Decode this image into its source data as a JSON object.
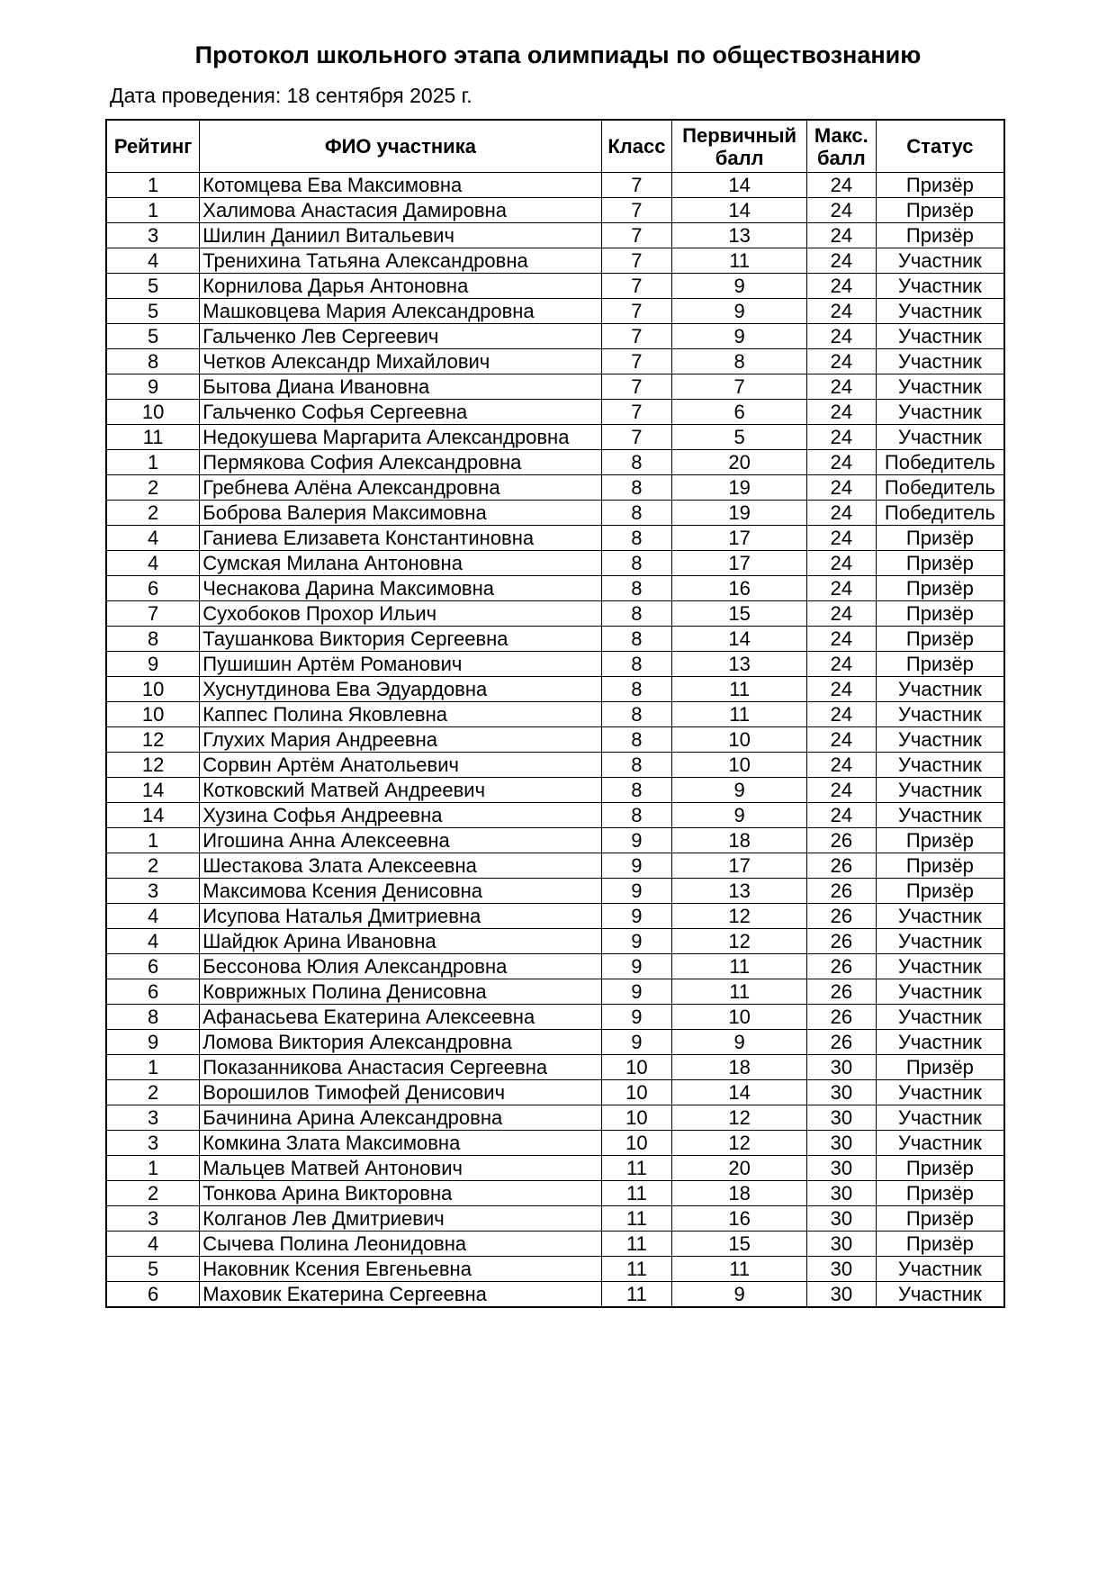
{
  "title": "Протокол школьного этапа олимпиады по обществознанию",
  "date_line": "Дата проведения: 18 сентября 2025 г.",
  "columns": [
    "Рейтинг",
    "ФИО участника",
    "Класс",
    "Первичный балл",
    "Макс. балл",
    "Статус"
  ],
  "rows": [
    [
      "1",
      "Котомцева Ева Максимовна",
      "7",
      "14",
      "24",
      "Призёр"
    ],
    [
      "1",
      "Халимова Анастасия Дамировна",
      "7",
      "14",
      "24",
      "Призёр"
    ],
    [
      "3",
      "Шилин Даниил Витальевич",
      "7",
      "13",
      "24",
      "Призёр"
    ],
    [
      "4",
      "Тренихина Татьяна Александровна",
      "7",
      "11",
      "24",
      "Участник"
    ],
    [
      "5",
      "Корнилова Дарья Антоновна",
      "7",
      "9",
      "24",
      "Участник"
    ],
    [
      "5",
      "Машковцева Мария Александровна",
      "7",
      "9",
      "24",
      "Участник"
    ],
    [
      "5",
      "Гальченко Лев Сергеевич",
      "7",
      "9",
      "24",
      "Участник"
    ],
    [
      "8",
      "Четков Александр Михайлович",
      "7",
      "8",
      "24",
      "Участник"
    ],
    [
      "9",
      "Бытова Диана Ивановна",
      "7",
      "7",
      "24",
      "Участник"
    ],
    [
      "10",
      "Гальченко Софья Сергеевна",
      "7",
      "6",
      "24",
      "Участник"
    ],
    [
      "11",
      "Недокушева Маргарита Александровна",
      "7",
      "5",
      "24",
      "Участник"
    ],
    [
      "1",
      "Пермякова София Александровна",
      "8",
      "20",
      "24",
      "Победитель"
    ],
    [
      "2",
      "Гребнева Алёна Александровна",
      "8",
      "19",
      "24",
      "Победитель"
    ],
    [
      "2",
      "Боброва Валерия Максимовна",
      "8",
      "19",
      "24",
      "Победитель"
    ],
    [
      "4",
      "Ганиева Елизавета Константиновна",
      "8",
      "17",
      "24",
      "Призёр"
    ],
    [
      "4",
      "Сумская Милана Антоновна",
      "8",
      "17",
      "24",
      "Призёр"
    ],
    [
      "6",
      "Чеснакова Дарина Максимовна",
      "8",
      "16",
      "24",
      "Призёр"
    ],
    [
      "7",
      "Сухобоков Прохор Ильич",
      "8",
      "15",
      "24",
      "Призёр"
    ],
    [
      "8",
      "Таушанкова Виктория Сергеевна",
      "8",
      "14",
      "24",
      "Призёр"
    ],
    [
      "9",
      "Пушишин Артём Романович",
      "8",
      "13",
      "24",
      "Призёр"
    ],
    [
      "10",
      "Хуснутдинова Ева Эдуардовна",
      "8",
      "11",
      "24",
      "Участник"
    ],
    [
      "10",
      "Каппес Полина Яковлевна",
      "8",
      "11",
      "24",
      "Участник"
    ],
    [
      "12",
      "Глухих Мария Андреевна",
      "8",
      "10",
      "24",
      "Участник"
    ],
    [
      "12",
      "Сорвин Артём Анатольевич",
      "8",
      "10",
      "24",
      "Участник"
    ],
    [
      "14",
      "Котковский Матвей Андреевич",
      "8",
      "9",
      "24",
      "Участник"
    ],
    [
      "14",
      "Хузина Софья Андреевна",
      "8",
      "9",
      "24",
      "Участник"
    ],
    [
      "1",
      "Игошина Анна Алексеевна",
      "9",
      "18",
      "26",
      "Призёр"
    ],
    [
      "2",
      "Шестакова Злата Алексеевна",
      "9",
      "17",
      "26",
      "Призёр"
    ],
    [
      "3",
      "Максимова Ксения Денисовна",
      "9",
      "13",
      "26",
      "Призёр"
    ],
    [
      "4",
      "Исупова Наталья Дмитриевна",
      "9",
      "12",
      "26",
      "Участник"
    ],
    [
      "4",
      "Шайдюк Арина Ивановна",
      "9",
      "12",
      "26",
      "Участник"
    ],
    [
      "6",
      "Бессонова Юлия Александровна",
      "9",
      "11",
      "26",
      "Участник"
    ],
    [
      "6",
      "Коврижных Полина Денисовна",
      "9",
      "11",
      "26",
      "Участник"
    ],
    [
      "8",
      "Афанасьева Екатерина Алексеевна",
      "9",
      "10",
      "26",
      "Участник"
    ],
    [
      "9",
      "Ломова Виктория Александровна",
      "9",
      "9",
      "26",
      "Участник"
    ],
    [
      "1",
      "Показанникова Анастасия Сергеевна",
      "10",
      "18",
      "30",
      "Призёр"
    ],
    [
      "2",
      "Ворошилов Тимофей Денисович",
      "10",
      "14",
      "30",
      "Участник"
    ],
    [
      "3",
      "Бачинина Арина Александровна",
      "10",
      "12",
      "30",
      "Участник"
    ],
    [
      "3",
      "Комкина Злата Максимовна",
      "10",
      "12",
      "30",
      "Участник"
    ],
    [
      "1",
      "Мальцев Матвей Антонович",
      "11",
      "20",
      "30",
      "Призёр"
    ],
    [
      "2",
      "Тонкова Арина Викторовна",
      "11",
      "18",
      "30",
      "Призёр"
    ],
    [
      "3",
      "Колганов Лев Дмитриевич",
      "11",
      "16",
      "30",
      "Призёр"
    ],
    [
      "4",
      "Сычева Полина Леонидовна",
      "11",
      "15",
      "30",
      "Призёр"
    ],
    [
      "5",
      "Наковник Ксения Евгеньевна",
      "11",
      "11",
      "30",
      "Участник"
    ],
    [
      "6",
      "Маховик Екатерина Сергеевна",
      "11",
      "9",
      "30",
      "Участник"
    ]
  ]
}
